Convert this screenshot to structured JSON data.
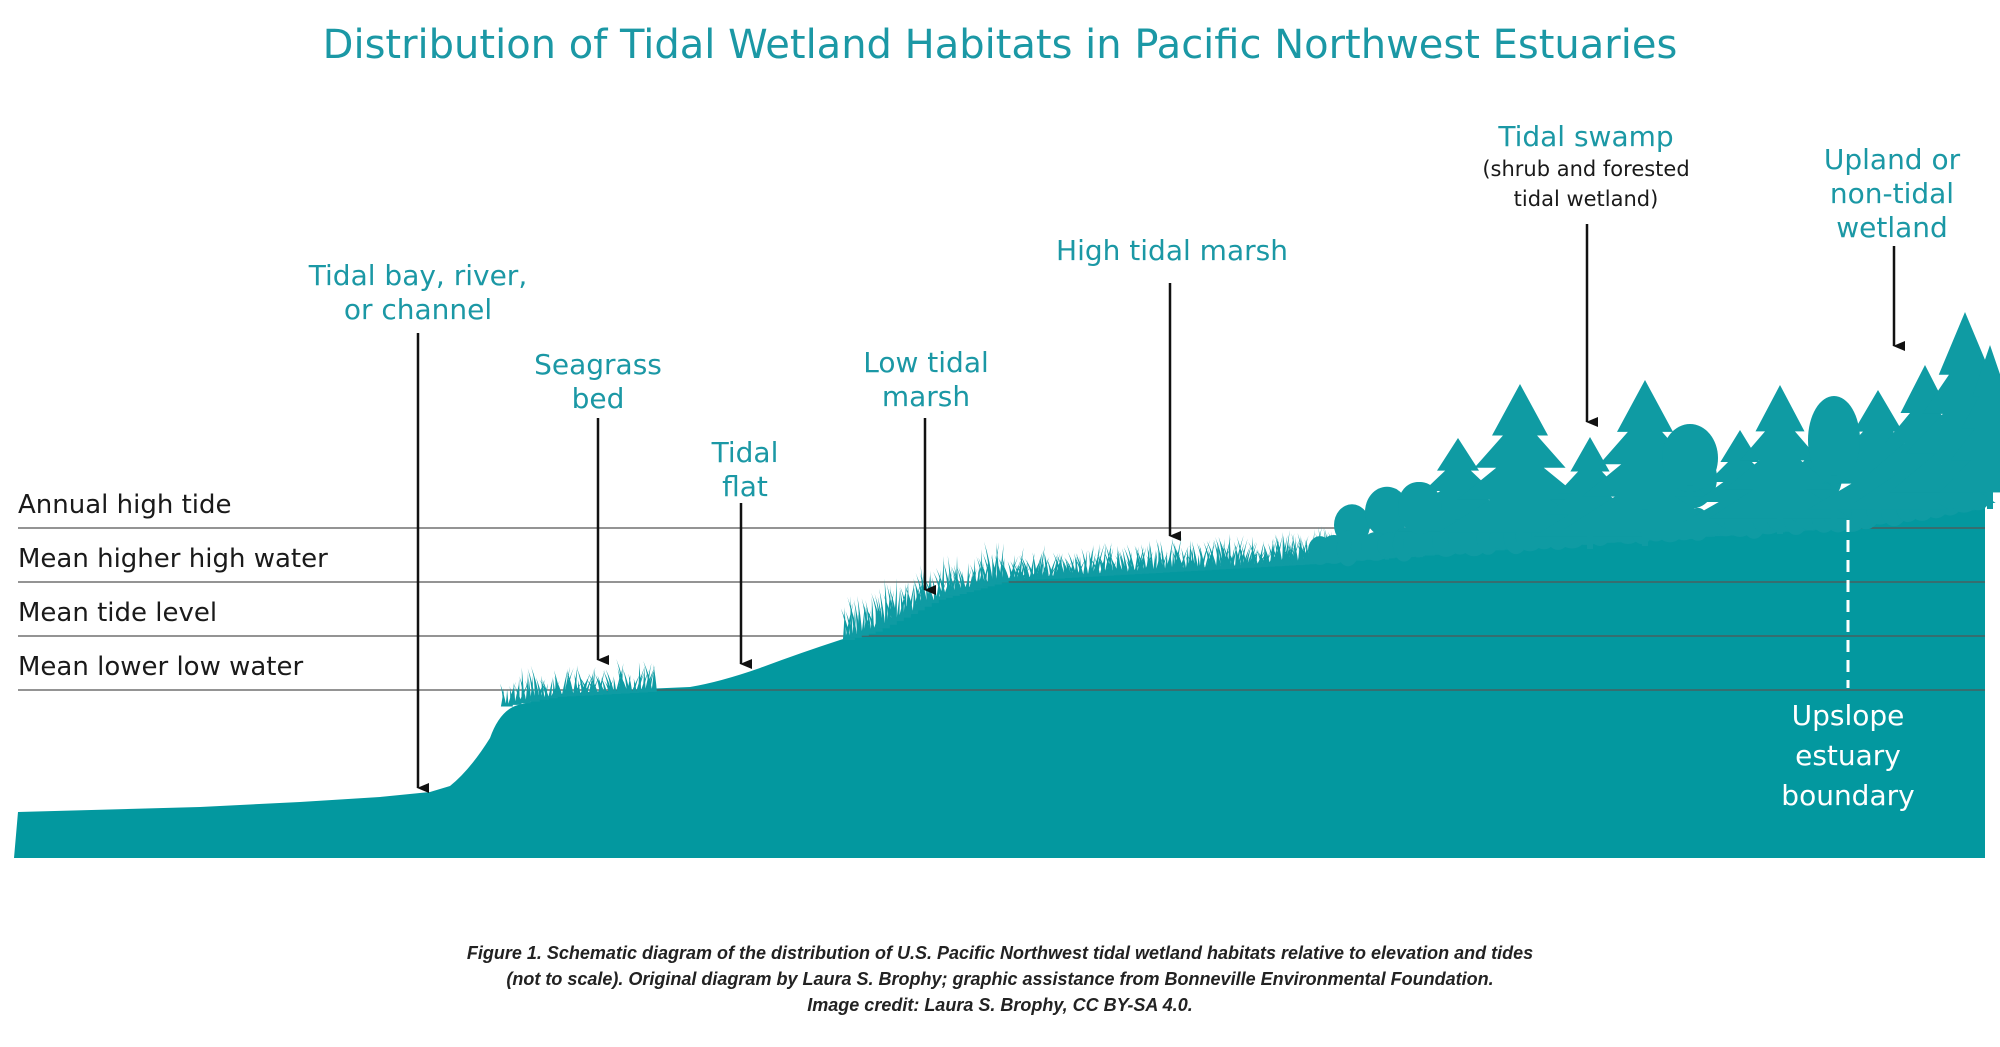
{
  "title": "Distribution of Tidal Wetland Habitats in Pacific Northwest Estuaries",
  "tide_levels": [
    {
      "label": "Annual high tide"
    },
    {
      "label": "Mean higher high water"
    },
    {
      "label": "Mean tide level"
    },
    {
      "label": "Mean lower low water"
    }
  ],
  "habitats": [
    {
      "label_lines": [
        "Tidal bay, river,",
        "or channel"
      ]
    },
    {
      "label_lines": [
        "Seagrass",
        "bed"
      ]
    },
    {
      "label_lines": [
        "Tidal",
        "flat"
      ]
    },
    {
      "label_lines": [
        "Low tidal",
        "marsh"
      ]
    },
    {
      "label_lines": [
        "High tidal marsh"
      ]
    },
    {
      "label_lines": [
        "Tidal swamp"
      ],
      "sublabel_lines": [
        "(shrub and forested",
        "tidal wetland)"
      ]
    },
    {
      "label_lines": [
        "Upland or",
        "non-tidal",
        "wetland"
      ]
    }
  ],
  "boundary": {
    "label_lines": [
      "Upslope",
      "estuary",
      "boundary"
    ]
  },
  "caption_lines": [
    "Figure 1. Schematic diagram of the distribution of U.S. Pacific Northwest tidal wetland habitats relative to elevation and tides",
    "(not to scale). Original diagram by Laura S. Brophy; graphic assistance from Bonneville Environmental Foundation.",
    "Image credit: Laura S. Brophy, CC BY-SA 4.0."
  ],
  "colors": {
    "title": "#1b98a5",
    "habitat_label": "#1b98a5",
    "terrain": "#03989f",
    "vegetation": "#0f9ba3",
    "tide_line": "#555555"
  }
}
